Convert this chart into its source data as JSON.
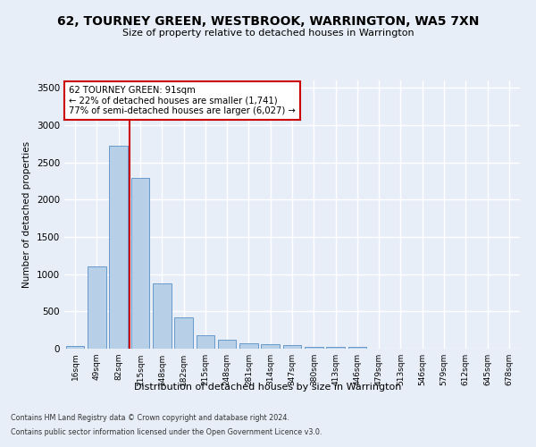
{
  "title": "62, TOURNEY GREEN, WESTBROOK, WARRINGTON, WA5 7XN",
  "subtitle": "Size of property relative to detached houses in Warrington",
  "xlabel": "Distribution of detached houses by size in Warrington",
  "ylabel": "Number of detached properties",
  "categories": [
    "16sqm",
    "49sqm",
    "82sqm",
    "115sqm",
    "148sqm",
    "182sqm",
    "215sqm",
    "248sqm",
    "281sqm",
    "314sqm",
    "347sqm",
    "380sqm",
    "413sqm",
    "446sqm",
    "479sqm",
    "513sqm",
    "546sqm",
    "579sqm",
    "612sqm",
    "645sqm",
    "678sqm"
  ],
  "values": [
    40,
    1100,
    2730,
    2290,
    880,
    420,
    180,
    115,
    70,
    55,
    45,
    30,
    25,
    20,
    5,
    3,
    2,
    2,
    1,
    1,
    1
  ],
  "bar_color": "#b8cfe8",
  "bar_edgecolor": "#6699cc",
  "vline_color": "#cc0000",
  "annotation_title": "62 TOURNEY GREEN: 91sqm",
  "annotation_line1": "← 22% of detached houses are smaller (1,741)",
  "annotation_line2": "77% of semi-detached houses are larger (6,027) →",
  "annotation_box_color": "#ffffff",
  "annotation_box_edgecolor": "#cc0000",
  "ylim": [
    0,
    3600
  ],
  "yticks": [
    0,
    500,
    1000,
    1500,
    2000,
    2500,
    3000,
    3500
  ],
  "footer1": "Contains HM Land Registry data © Crown copyright and database right 2024.",
  "footer2": "Contains public sector information licensed under the Open Government Licence v3.0.",
  "bg_color": "#e8eef8",
  "grid_color": "#ffffff"
}
